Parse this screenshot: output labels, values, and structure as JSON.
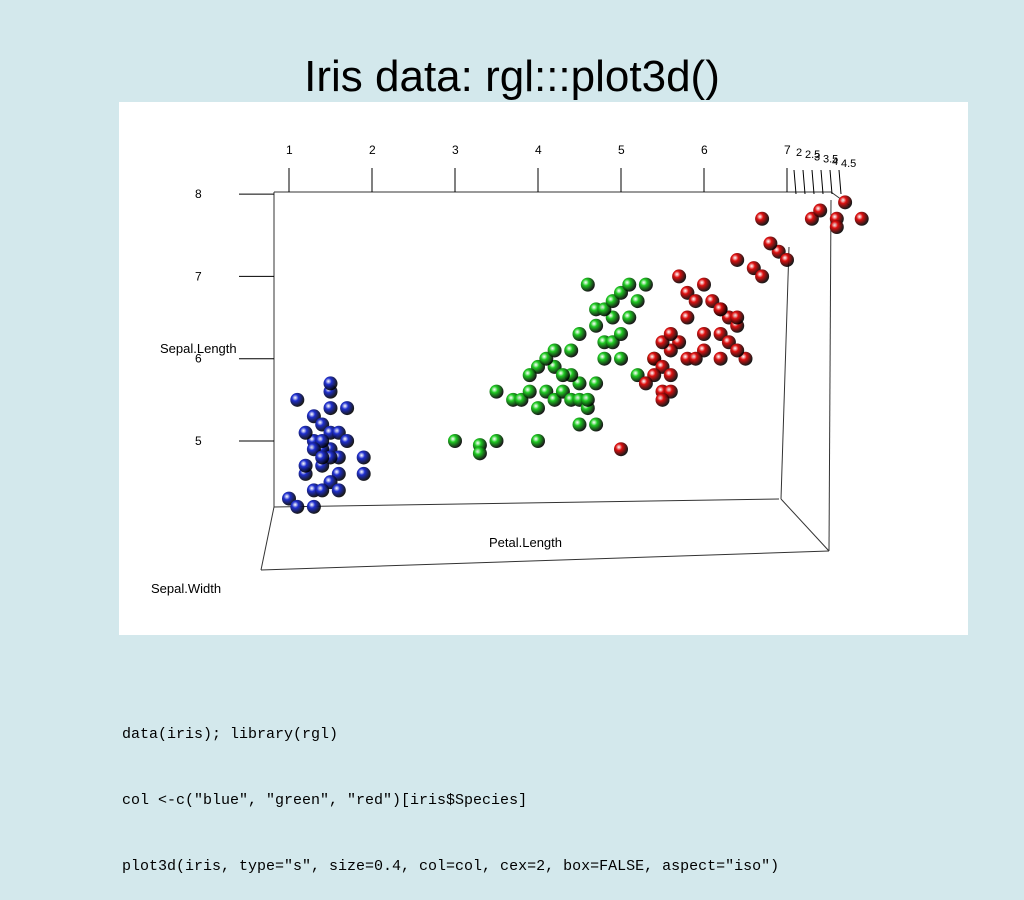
{
  "slide": {
    "title": "Iris data: rgl:::plot3d()",
    "code_lines": [
      "data(iris); library(rgl)",
      "col <-c(\"blue\", \"green\", \"red\")[iris$Species]",
      "plot3d(iris, type=\"s\", size=0.4, col=col, cex=2, box=FALSE, aspect=\"iso\")"
    ]
  },
  "chart_data": {
    "type": "scatter",
    "xlabel": "Petal.Length",
    "ylabel": "Sepal.Length",
    "zlabel": "Sepal.Width",
    "x_ticks": [
      "1",
      "2",
      "3",
      "4",
      "5",
      "6",
      "7"
    ],
    "y_ticks": [
      "5",
      "6",
      "7",
      "8"
    ],
    "z_ticks": [
      "2",
      "2.5",
      "3",
      "3.5",
      "4",
      "4.5"
    ],
    "series": [
      {
        "color": "#1f2fd0",
        "points": [
          [
            1.1,
            5.5
          ],
          [
            1.3,
            5.3
          ],
          [
            1.4,
            5.2
          ],
          [
            1.5,
            5.1
          ],
          [
            1.3,
            5.0
          ],
          [
            1.5,
            4.9
          ],
          [
            1.6,
            4.8
          ],
          [
            1.4,
            4.9
          ],
          [
            1.2,
            5.1
          ],
          [
            1.5,
            5.4
          ],
          [
            1.7,
            5.4
          ],
          [
            1.4,
            5.0
          ],
          [
            1.3,
            4.9
          ],
          [
            1.4,
            4.7
          ],
          [
            1.6,
            4.6
          ],
          [
            1.5,
            4.8
          ],
          [
            1.4,
            4.8
          ],
          [
            1.2,
            4.6
          ],
          [
            1.5,
            4.5
          ],
          [
            1.6,
            4.4
          ],
          [
            1.3,
            4.4
          ],
          [
            1.4,
            4.4
          ],
          [
            1.9,
            4.8
          ],
          [
            1.9,
            4.6
          ],
          [
            1.0,
            4.3
          ],
          [
            1.1,
            4.2
          ],
          [
            1.3,
            4.2
          ],
          [
            1.5,
            5.6
          ],
          [
            1.5,
            5.7
          ],
          [
            1.6,
            5.1
          ],
          [
            1.7,
            5.0
          ],
          [
            1.2,
            4.7
          ]
        ]
      },
      {
        "color": "#1fcc22",
        "points": [
          [
            3.0,
            5.0
          ],
          [
            3.3,
            4.95
          ],
          [
            3.3,
            4.85
          ],
          [
            3.5,
            5.0
          ],
          [
            4.0,
            5.0
          ],
          [
            3.5,
            5.6
          ],
          [
            3.7,
            5.5
          ],
          [
            3.8,
            5.5
          ],
          [
            3.9,
            5.6
          ],
          [
            4.0,
            5.4
          ],
          [
            4.1,
            5.6
          ],
          [
            4.2,
            5.5
          ],
          [
            4.3,
            5.6
          ],
          [
            4.4,
            5.5
          ],
          [
            4.5,
            5.5
          ],
          [
            4.5,
            5.2
          ],
          [
            4.5,
            5.7
          ],
          [
            4.4,
            5.8
          ],
          [
            4.6,
            5.4
          ],
          [
            4.6,
            5.5
          ],
          [
            4.7,
            5.2
          ],
          [
            4.7,
            5.7
          ],
          [
            4.8,
            6.0
          ],
          [
            4.8,
            6.2
          ],
          [
            4.9,
            6.2
          ],
          [
            4.9,
            6.5
          ],
          [
            5.0,
            6.3
          ],
          [
            5.0,
            6.0
          ],
          [
            5.1,
            6.5
          ],
          [
            4.5,
            6.3
          ],
          [
            4.7,
            6.4
          ],
          [
            4.7,
            6.6
          ],
          [
            4.6,
            6.9
          ],
          [
            4.8,
            6.6
          ],
          [
            4.9,
            6.7
          ],
          [
            5.0,
            6.8
          ],
          [
            5.1,
            6.9
          ],
          [
            5.2,
            6.7
          ],
          [
            5.3,
            6.9
          ],
          [
            4.4,
            6.1
          ],
          [
            4.2,
            5.9
          ],
          [
            4.0,
            5.9
          ],
          [
            4.1,
            6.0
          ],
          [
            4.3,
            5.8
          ],
          [
            3.9,
            5.8
          ],
          [
            4.2,
            6.1
          ],
          [
            5.4,
            6.0
          ],
          [
            5.2,
            5.8
          ]
        ]
      },
      {
        "color": "#e01010",
        "points": [
          [
            5.7,
            7.0
          ],
          [
            5.8,
            6.8
          ],
          [
            6.0,
            6.9
          ],
          [
            5.9,
            6.7
          ],
          [
            6.1,
            6.7
          ],
          [
            6.2,
            6.6
          ],
          [
            6.3,
            6.5
          ],
          [
            6.4,
            6.4
          ],
          [
            6.2,
            6.3
          ],
          [
            6.3,
            6.2
          ],
          [
            6.5,
            6.0
          ],
          [
            6.4,
            6.1
          ],
          [
            6.2,
            6.0
          ],
          [
            6.0,
            6.1
          ],
          [
            5.8,
            6.0
          ],
          [
            5.7,
            6.2
          ],
          [
            5.6,
            6.1
          ],
          [
            5.5,
            6.2
          ],
          [
            5.4,
            6.0
          ],
          [
            5.5,
            5.9
          ],
          [
            5.6,
            5.8
          ],
          [
            5.5,
            5.6
          ],
          [
            5.4,
            5.8
          ],
          [
            5.6,
            5.6
          ],
          [
            5.5,
            5.5
          ],
          [
            5.3,
            5.7
          ],
          [
            6.7,
            7.7
          ],
          [
            6.9,
            7.3
          ],
          [
            7.0,
            7.2
          ],
          [
            6.6,
            7.1
          ],
          [
            6.4,
            7.2
          ],
          [
            6.7,
            7.0
          ],
          [
            6.8,
            7.4
          ],
          [
            7.3,
            7.7
          ],
          [
            7.6,
            7.7
          ],
          [
            7.4,
            7.8
          ],
          [
            7.7,
            7.9
          ],
          [
            7.6,
            7.6
          ],
          [
            7.9,
            7.7
          ],
          [
            6.2,
            6.6
          ],
          [
            6.4,
            6.5
          ],
          [
            5.0,
            4.9
          ],
          [
            5.9,
            6.0
          ],
          [
            6.0,
            6.3
          ],
          [
            5.6,
            6.3
          ],
          [
            5.8,
            6.5
          ]
        ]
      }
    ]
  }
}
